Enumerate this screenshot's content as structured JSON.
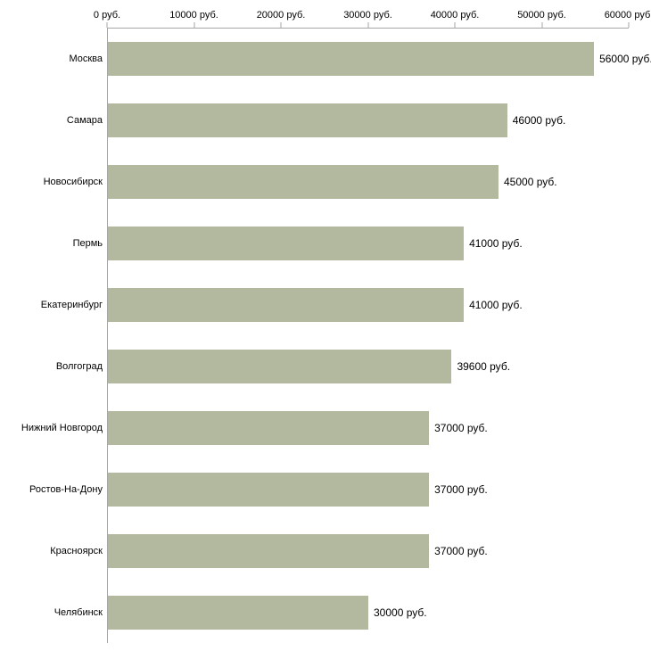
{
  "chart_data": {
    "type": "bar",
    "orientation": "horizontal",
    "title": "",
    "xlabel": "",
    "ylabel": "",
    "unit": "руб.",
    "xlim": [
      0,
      60000
    ],
    "x_ticks": [
      0,
      10000,
      20000,
      30000,
      40000,
      50000,
      60000
    ],
    "x_tick_labels": [
      "0 руб.",
      "10000 руб.",
      "20000 руб.",
      "30000 руб.",
      "40000 руб.",
      "50000 руб.",
      "60000 руб."
    ],
    "categories": [
      "Москва",
      "Самара",
      "Новосибирск",
      "Пермь",
      "Екатеринбург",
      "Волгоград",
      "Нижний Новгород",
      "Ростов-На-Дону",
      "Красноярск",
      "Челябинск"
    ],
    "values": [
      56000,
      46000,
      45000,
      41000,
      41000,
      39600,
      37000,
      37000,
      37000,
      30000
    ],
    "value_labels": [
      "56000 руб.",
      "46000 руб.",
      "45000 руб.",
      "41000 руб.",
      "41000 руб.",
      "39600 руб.",
      "37000 руб.",
      "37000 руб.",
      "37000 руб.",
      "30000 руб."
    ],
    "bar_color": "#b3b99e",
    "axis_color": "#a6a6a6",
    "background_color": "#ffffff",
    "grid": false,
    "legend": false
  }
}
